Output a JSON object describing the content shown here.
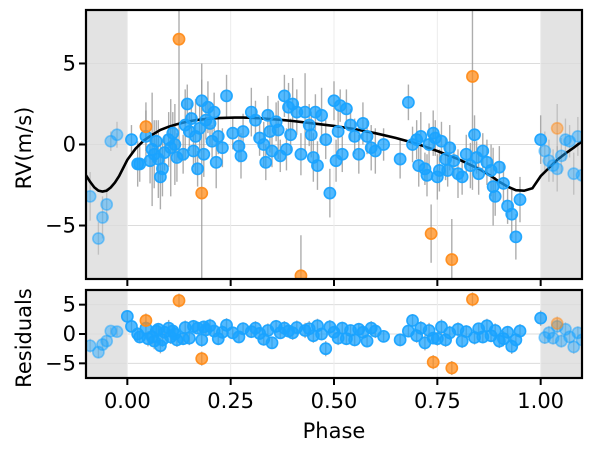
{
  "chart_data": [
    {
      "type": "scatter",
      "title": "",
      "xlabel": "",
      "ylabel": "RV(m/s)",
      "xlim": [
        -0.1,
        1.1
      ],
      "ylim": [
        -8.3,
        8.3
      ],
      "grid": true,
      "legend": "none",
      "shaded_phase_ranges": [
        [
          -0.1,
          0.0
        ],
        [
          1.0,
          1.1
        ]
      ],
      "y_ticks": [
        -5,
        0,
        5
      ],
      "y_tick_labels": [
        "−5",
        "0",
        "5"
      ],
      "colors": {
        "primary_points": "#1aa3ff",
        "secondary_points": "#ff8c1a",
        "model_line": "#000000",
        "error_bars": "#999999",
        "shade": "#e3e3e3"
      },
      "series": [
        {
          "kind": "model",
          "x": [
            -0.1,
            -0.09,
            -0.08,
            -0.07,
            -0.06,
            -0.05,
            -0.04,
            -0.03,
            -0.02,
            -0.01,
            0.0,
            0.02,
            0.04,
            0.06,
            0.08,
            0.1,
            0.12,
            0.14,
            0.16,
            0.18,
            0.2,
            0.22,
            0.24,
            0.26,
            0.28,
            0.3,
            0.32,
            0.34,
            0.36,
            0.38,
            0.4,
            0.45,
            0.5,
            0.55,
            0.6,
            0.65,
            0.7,
            0.75,
            0.8,
            0.85,
            0.88,
            0.9,
            0.92,
            0.94,
            0.96,
            0.98,
            1.0,
            1.02,
            1.04,
            1.06,
            1.08,
            1.1
          ],
          "y": [
            -1.9,
            -2.3,
            -2.65,
            -2.85,
            -2.9,
            -2.85,
            -2.65,
            -2.35,
            -1.95,
            -1.45,
            -0.95,
            -0.25,
            0.25,
            0.6,
            0.9,
            1.1,
            1.25,
            1.38,
            1.48,
            1.55,
            1.6,
            1.63,
            1.65,
            1.66,
            1.66,
            1.65,
            1.62,
            1.58,
            1.54,
            1.5,
            1.45,
            1.3,
            1.15,
            0.95,
            0.7,
            0.4,
            0.05,
            -0.4,
            -0.9,
            -1.5,
            -1.95,
            -2.3,
            -2.6,
            -2.82,
            -2.85,
            -2.7,
            -1.95,
            -1.45,
            -0.95,
            -0.55,
            -0.2,
            0.2
          ]
        },
        {
          "kind": "points",
          "x": [
            -0.09,
            -0.07,
            -0.06,
            -0.05,
            -0.04,
            -0.025,
            0.01,
            0.025,
            0.03,
            0.045,
            0.055,
            0.06,
            0.065,
            0.07,
            0.075,
            0.08,
            0.085,
            0.09,
            0.1,
            0.105,
            0.11,
            0.115,
            0.12,
            0.135,
            0.14,
            0.145,
            0.15,
            0.155,
            0.16,
            0.165,
            0.17,
            0.175,
            0.18,
            0.185,
            0.19,
            0.195,
            0.2,
            0.205,
            0.21,
            0.215,
            0.22,
            0.23,
            0.24,
            0.255,
            0.27,
            0.275,
            0.28,
            0.3,
            0.31,
            0.32,
            0.33,
            0.335,
            0.34,
            0.345,
            0.35,
            0.36,
            0.365,
            0.37,
            0.38,
            0.385,
            0.39,
            0.395,
            0.4,
            0.41,
            0.42,
            0.43,
            0.44,
            0.445,
            0.45,
            0.455,
            0.46,
            0.47,
            0.48,
            0.49,
            0.5,
            0.505,
            0.51,
            0.515,
            0.52,
            0.53,
            0.54,
            0.55,
            0.56,
            0.57,
            0.58,
            0.59,
            0.6,
            0.62,
            0.66,
            0.68,
            0.69,
            0.7,
            0.705,
            0.71,
            0.72,
            0.725,
            0.73,
            0.74,
            0.745,
            0.75,
            0.755,
            0.76,
            0.77,
            0.775,
            0.78,
            0.79,
            0.8,
            0.81,
            0.82,
            0.83,
            0.84,
            0.845,
            0.85,
            0.86,
            0.87,
            0.88,
            0.885,
            0.89,
            0.9,
            0.91,
            0.92,
            0.93,
            0.94,
            0.95,
            1.0,
            1.01,
            1.02,
            1.03,
            1.04,
            1.05,
            1.06,
            1.07,
            1.08,
            1.09,
            1.1
          ],
          "y": [
            -3.2,
            -5.8,
            -4.5,
            -3.7,
            0.2,
            0.6,
            0.3,
            -1.2,
            -1.2,
            0.5,
            -1.0,
            -0.3,
            -0.6,
            0.2,
            -0.9,
            -2.0,
            -1.5,
            -0.5,
            0.3,
            -0.2,
            0.7,
            0.0,
            -0.8,
            -0.6,
            1.2,
            2.5,
            0.8,
            1.6,
            -0.4,
            0.5,
            -1.5,
            1.0,
            2.7,
            -0.6,
            1.5,
            2.3,
            1.3,
            0.2,
            2.0,
            -1.1,
            0.5,
            -0.2,
            3.0,
            0.7,
            -0.1,
            -0.7,
            0.8,
            2.0,
            1.5,
            0.4,
            0.0,
            -1.1,
            1.8,
            0.8,
            -0.4,
            1.4,
            0.9,
            -0.7,
            3.0,
            -0.3,
            2.3,
            0.6,
            2.5,
            2.0,
            -0.6,
            2.0,
            1.2,
            0.6,
            -0.8,
            2.0,
            -1.3,
            1.8,
            0.3,
            -3.0,
            2.7,
            -1.0,
            0.8,
            2.4,
            -0.6,
            2.2,
            1.2,
            0.5,
            -0.6,
            1.3,
            0.5,
            -0.2,
            -0.4,
            0.0,
            -0.9,
            2.6,
            0.0,
            0.3,
            -1.3,
            0.5,
            -1.5,
            -1.9,
            0.0,
            0.7,
            0.4,
            -2.0,
            -1.6,
            0.2,
            -0.9,
            -1.6,
            -0.2,
            -1.0,
            -1.8,
            -2.0,
            -0.6,
            -1.3,
            0.6,
            -0.8,
            -1.8,
            -0.4,
            -1.1,
            -1.6,
            -2.6,
            -3.2,
            -1.4,
            -2.4,
            -3.8,
            -4.3,
            -5.7,
            -3.4,
            0.3,
            -0.4,
            -1.0,
            -1.3,
            -1.5,
            -0.7,
            0.3,
            0.2,
            -1.8,
            0.5,
            -1.9
          ],
          "yerr": [
            1.5,
            1.0,
            1.3,
            1.0,
            0.6,
            0.8,
            0.9,
            1.4,
            1.1,
            1.6,
            1.4,
            3.5,
            2.1,
            1.3,
            2.4,
            2.0,
            1.7,
            1.1,
            1.7,
            3.0,
            1.3,
            2.5,
            1.5,
            1.2,
            2.2,
            1.2,
            1.2,
            1.0,
            1.0,
            2.3,
            1.1,
            1.5,
            1.3,
            1.4,
            1.2,
            1.6,
            1.3,
            1.0,
            1.2,
            1.6,
            1.1,
            1.2,
            1.3,
            1.0,
            1.0,
            1.4,
            1.1,
            1.5,
            1.2,
            1.1,
            1.4,
            1.1,
            1.2,
            1.3,
            1.0,
            1.2,
            1.8,
            1.0,
            1.3,
            1.3,
            1.5,
            1.0,
            1.6,
            1.4,
            1.3,
            2.4,
            1.3,
            1.4,
            1.5,
            1.1,
            1.5,
            1.7,
            1.2,
            1.5,
            1.2,
            1.3,
            1.4,
            1.0,
            1.1,
            1.2,
            1.0,
            1.1,
            1.2,
            1.3,
            1.1,
            1.4,
            1.4,
            1.0,
            1.2,
            1.1,
            1.1,
            1.2,
            1.3,
            1.5,
            1.0,
            1.3,
            1.3,
            1.4,
            1.1,
            1.4,
            1.3,
            1.2,
            1.3,
            1.0,
            1.4,
            1.0,
            1.5,
            1.1,
            1.2,
            1.4,
            1.2,
            1.0,
            1.3,
            1.1,
            1.4,
            1.6,
            2.4,
            1.2,
            1.3,
            1.3,
            1.1,
            1.5,
            1.4,
            1.4,
            1.5,
            1.2,
            1.3,
            1.0,
            1.4,
            1.1,
            1.3,
            1.0,
            1.3,
            1.2,
            1.1
          ]
        },
        {
          "kind": "points_secondary",
          "x": [
            0.045,
            0.125,
            0.18,
            0.42,
            0.735,
            0.785,
            0.835,
            1.04
          ],
          "y": [
            1.1,
            6.5,
            -3.0,
            -8.1,
            -5.5,
            -7.1,
            4.2,
            1.0
          ],
          "yerr": [
            1.5,
            7.5,
            8.0,
            2.5,
            1.8,
            2.5,
            7.0,
            1.5
          ]
        }
      ]
    },
    {
      "type": "scatter",
      "title": "",
      "xlabel": "Phase",
      "ylabel": "Residuals",
      "xlim": [
        -0.1,
        1.1
      ],
      "ylim": [
        -7.5,
        7.5
      ],
      "grid": true,
      "legend": "none",
      "shaded_phase_ranges": [
        [
          -0.1,
          0.0
        ],
        [
          1.0,
          1.1
        ]
      ],
      "x_ticks": [
        0,
        0.25,
        0.5,
        0.75,
        1.0
      ],
      "x_tick_labels": [
        "0.00",
        "0.25",
        "0.50",
        "0.75",
        "1.00"
      ],
      "y_ticks": [
        -5,
        0,
        5
      ],
      "y_tick_labels": [
        "−5",
        "0",
        "5"
      ],
      "series": [
        {
          "kind": "points",
          "x": [
            -0.09,
            -0.07,
            -0.06,
            -0.05,
            -0.04,
            -0.025,
            0.0,
            0.01,
            0.025,
            0.03,
            0.045,
            0.05,
            0.06,
            0.065,
            0.07,
            0.075,
            0.08,
            0.085,
            0.09,
            0.1,
            0.105,
            0.11,
            0.115,
            0.12,
            0.135,
            0.14,
            0.15,
            0.16,
            0.17,
            0.18,
            0.185,
            0.19,
            0.2,
            0.21,
            0.22,
            0.23,
            0.24,
            0.255,
            0.27,
            0.28,
            0.3,
            0.31,
            0.32,
            0.33,
            0.34,
            0.35,
            0.36,
            0.37,
            0.38,
            0.39,
            0.4,
            0.41,
            0.43,
            0.44,
            0.45,
            0.46,
            0.47,
            0.48,
            0.49,
            0.5,
            0.51,
            0.52,
            0.53,
            0.54,
            0.55,
            0.56,
            0.57,
            0.58,
            0.59,
            0.6,
            0.62,
            0.66,
            0.68,
            0.69,
            0.7,
            0.71,
            0.72,
            0.73,
            0.74,
            0.75,
            0.76,
            0.77,
            0.78,
            0.8,
            0.81,
            0.82,
            0.84,
            0.85,
            0.86,
            0.87,
            0.88,
            0.89,
            0.9,
            0.91,
            0.92,
            0.93,
            0.94,
            0.95,
            1.0,
            1.01,
            1.02,
            1.03,
            1.04,
            1.05,
            1.06,
            1.07,
            1.08,
            1.09,
            1.1
          ],
          "y": [
            -2.0,
            -3.1,
            -1.8,
            -1.2,
            0.5,
            0.4,
            3.0,
            1.3,
            0.0,
            -0.5,
            1.0,
            -0.8,
            -0.5,
            -1.2,
            0.5,
            0.8,
            -2.0,
            -1.0,
            0.3,
            1.0,
            -0.5,
            0.5,
            0.0,
            -1.0,
            -0.8,
            1.1,
            -0.7,
            1.3,
            1.0,
            -1.0,
            1.2,
            0.7,
            1.4,
            0.5,
            -0.8,
            0.3,
            1.5,
            0.2,
            -0.5,
            0.9,
            0.4,
            1.0,
            0.1,
            -0.9,
            0.6,
            -1.5,
            1.3,
            0.2,
            1.0,
            0.5,
            0.2,
            1.1,
            0.6,
            0.9,
            -0.3,
            1.4,
            0.0,
            -2.5,
            1.2,
            0.3,
            -0.7,
            1.0,
            -0.8,
            0.6,
            -1.0,
            0.8,
            0.3,
            -1.2,
            1.0,
            0.5,
            -0.4,
            -1.0,
            0.5,
            2.3,
            -0.3,
            1.0,
            -1.5,
            0.6,
            -0.7,
            -0.8,
            1.2,
            -1.0,
            0.2,
            0.8,
            -1.2,
            0.4,
            -0.6,
            0.9,
            -0.5,
            1.4,
            -0.3,
            0.6,
            -1.2,
            -0.8,
            0.3,
            -2.1,
            -1.0,
            0.5,
            2.7,
            -0.6,
            0.2,
            -0.7,
            1.3,
            -1.2,
            0.8,
            -0.5,
            -2.2,
            0.2,
            -1.0
          ],
          "yerr": [
            1.2,
            1.0,
            1.0,
            1.0,
            0.6,
            0.8,
            0.9,
            1.0,
            1.2,
            1.1,
            1.3,
            1.3,
            1.3,
            1.4,
            1.2,
            1.1,
            1.3,
            1.2,
            1.1,
            1.4,
            1.2,
            1.3,
            1.2,
            1.2,
            1.1,
            1.2,
            1.2,
            1.1,
            1.1,
            1.2,
            1.1,
            1.2,
            1.2,
            1.0,
            1.1,
            1.2,
            1.2,
            1.0,
            1.0,
            1.1,
            1.1,
            1.2,
            1.1,
            1.1,
            1.2,
            1.0,
            1.1,
            1.0,
            1.2,
            1.1,
            1.2,
            1.2,
            1.3,
            1.3,
            1.2,
            1.2,
            1.1,
            1.3,
            1.2,
            1.1,
            1.2,
            1.1,
            1.1,
            1.0,
            1.1,
            1.1,
            1.2,
            1.1,
            1.2,
            1.2,
            1.0,
            1.1,
            1.1,
            1.1,
            1.2,
            1.2,
            1.3,
            1.3,
            1.0,
            1.2,
            1.3,
            1.2,
            1.2,
            1.2,
            1.2,
            1.1,
            1.2,
            1.0,
            1.1,
            1.2,
            1.1,
            1.2,
            1.2,
            1.3,
            1.1,
            1.3,
            1.2,
            1.2,
            1.3,
            1.1,
            1.2,
            1.1,
            1.2,
            1.1,
            1.2,
            1.1,
            1.2,
            1.1,
            1.2
          ]
        },
        {
          "kind": "points_secondary",
          "x": [
            0.045,
            0.125,
            0.18,
            0.74,
            0.785,
            0.835,
            1.04
          ],
          "y": [
            2.3,
            5.7,
            -4.2,
            -4.8,
            -5.8,
            5.9,
            1.8
          ],
          "yerr": [
            1.2,
            1.2,
            1.2,
            1.2,
            1.2,
            1.2,
            1.2
          ]
        }
      ]
    }
  ]
}
